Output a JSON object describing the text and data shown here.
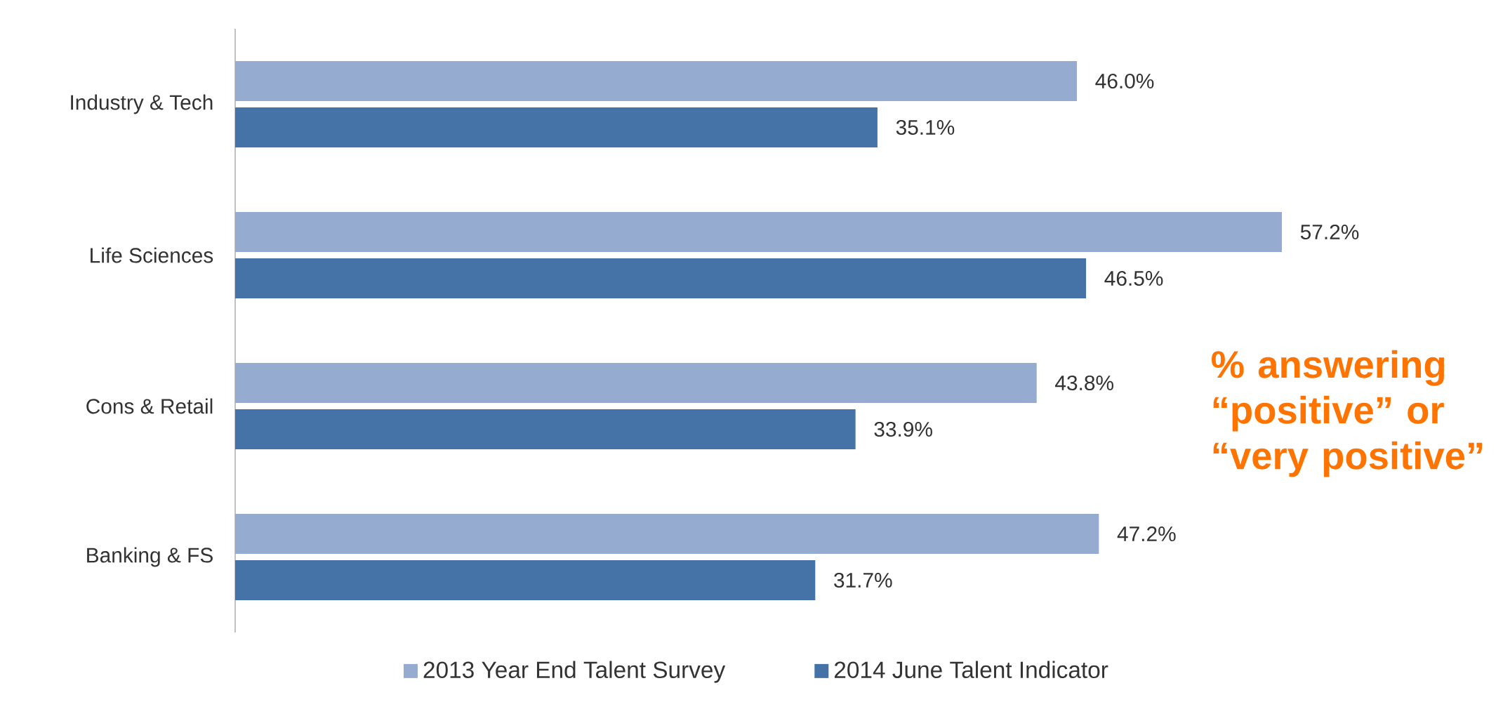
{
  "chart_data": {
    "type": "bar",
    "orientation": "horizontal",
    "categories": [
      "Industry & Tech",
      "Life Sciences",
      "Cons & Retail",
      "Banking & FS"
    ],
    "series": [
      {
        "name": "2013 Year End Talent  Survey",
        "color": "#95abd0",
        "values": [
          46.0,
          57.2,
          43.8,
          47.2
        ],
        "value_labels": [
          "46.0%",
          "57.2%",
          "43.8%",
          "47.2%"
        ]
      },
      {
        "name": "2014 June Talent Indicator",
        "color": "#4572a7",
        "values": [
          35.1,
          46.5,
          33.9,
          31.7
        ],
        "value_labels": [
          "35.1%",
          "46.5%",
          "33.9%",
          "31.7%"
        ]
      }
    ],
    "tick_labels": "y",
    "legend": "bottom",
    "annotations": [
      "% answering “positive” or “very positive”"
    ]
  }
}
